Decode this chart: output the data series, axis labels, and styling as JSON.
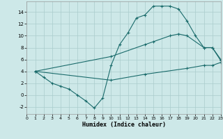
{
  "xlabel": "Humidex (Indice chaleur)",
  "bg_color": "#cde8e8",
  "grid_color": "#aacccc",
  "line_color": "#1a6b6b",
  "xlim": [
    0,
    23
  ],
  "ylim": [
    -3.2,
    15.8
  ],
  "xticks": [
    0,
    1,
    2,
    3,
    4,
    5,
    6,
    7,
    8,
    9,
    10,
    11,
    12,
    13,
    14,
    15,
    16,
    17,
    18,
    19,
    20,
    21,
    22,
    23
  ],
  "yticks": [
    -2,
    0,
    2,
    4,
    6,
    8,
    10,
    12,
    14
  ],
  "line1_x": [
    1,
    2,
    3,
    4,
    5,
    6,
    7,
    8,
    9,
    10,
    11,
    12,
    13,
    14,
    15,
    16,
    17,
    18,
    19,
    20,
    21,
    22,
    23
  ],
  "line1_y": [
    4,
    3,
    2,
    1.5,
    1,
    0,
    -1,
    -2.2,
    -0.5,
    5,
    8.5,
    10.5,
    13,
    13.5,
    15,
    15,
    15,
    14.5,
    12.5,
    10,
    8,
    8,
    6
  ],
  "line2_x": [
    1,
    10,
    14,
    15,
    17,
    18,
    19,
    21,
    22,
    23
  ],
  "line2_y": [
    4,
    6.5,
    8.5,
    9,
    10,
    10.3,
    10,
    8,
    8,
    5.8
  ],
  "line3_x": [
    1,
    10,
    14,
    19,
    21,
    22,
    23
  ],
  "line3_y": [
    4,
    2.5,
    3.5,
    4.5,
    5,
    5,
    5.5
  ]
}
